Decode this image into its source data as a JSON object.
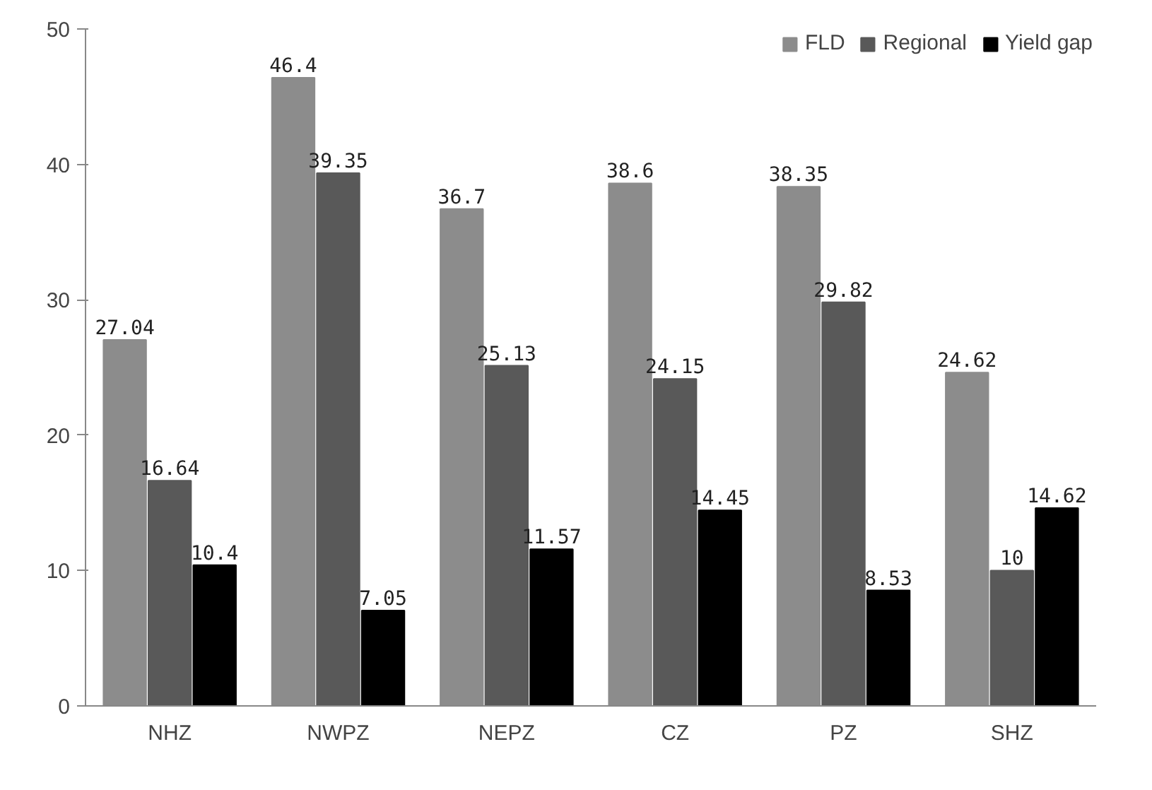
{
  "chart_data": {
    "type": "bar",
    "categories": [
      "NHZ",
      "NWPZ",
      "NEPZ",
      "CZ",
      "PZ",
      "SHZ"
    ],
    "series": [
      {
        "name": "FLD",
        "color": "#8c8c8c",
        "values": [
          27.04,
          46.4,
          36.7,
          38.6,
          38.35,
          24.62
        ]
      },
      {
        "name": "Regional",
        "color": "#595959",
        "values": [
          16.64,
          39.35,
          25.13,
          24.15,
          29.82,
          10
        ]
      },
      {
        "name": "Yield gap",
        "color": "#000000",
        "values": [
          10.4,
          7.05,
          11.57,
          14.45,
          8.53,
          14.62
        ]
      }
    ],
    "ylim": [
      0,
      50
    ],
    "yticks": [
      0,
      10,
      20,
      30,
      40,
      50
    ],
    "grid": false,
    "legend": "top right",
    "data_labels": true
  }
}
